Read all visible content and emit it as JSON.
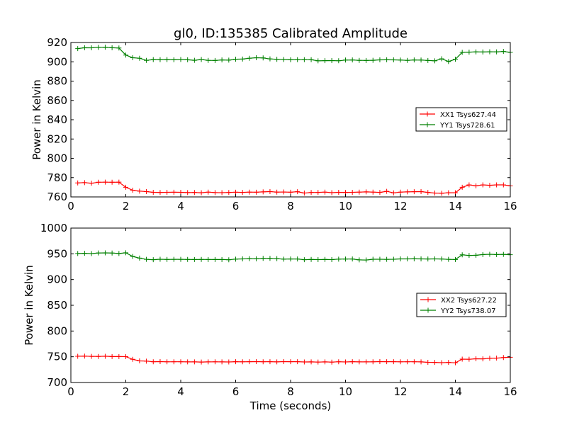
{
  "figure": {
    "title": "gl0, ID:135385 Calibrated Amplitude",
    "xlabel": "Time (seconds)"
  },
  "chart_data": [
    {
      "type": "line",
      "title": "gl0, ID:135385 Calibrated Amplitude",
      "xlabel": "",
      "ylabel": "Power in Kelvin",
      "xlim": [
        0,
        16
      ],
      "ylim": [
        760,
        920
      ],
      "xticks": [
        0,
        2,
        4,
        6,
        8,
        10,
        12,
        14,
        16
      ],
      "yticks": [
        760,
        780,
        800,
        820,
        840,
        860,
        880,
        900,
        920
      ],
      "grid": false,
      "legend_position": "right",
      "x": [
        0.25,
        0.5,
        0.75,
        1.0,
        1.25,
        1.5,
        1.75,
        2.0,
        2.25,
        2.5,
        2.75,
        3.0,
        3.25,
        3.5,
        3.75,
        4.0,
        4.25,
        4.5,
        4.75,
        5.0,
        5.25,
        5.5,
        5.75,
        6.0,
        6.25,
        6.5,
        6.75,
        7.0,
        7.25,
        7.5,
        7.75,
        8.0,
        8.25,
        8.5,
        8.75,
        9.0,
        9.25,
        9.5,
        9.75,
        10.0,
        10.25,
        10.5,
        10.75,
        11.0,
        11.25,
        11.5,
        11.75,
        12.0,
        12.25,
        12.5,
        12.75,
        13.0,
        13.25,
        13.5,
        13.75,
        14.0,
        14.25,
        14.5,
        14.75,
        15.0,
        15.25,
        15.5,
        15.75,
        16.0
      ],
      "series": [
        {
          "name": "XX1 Tsys627.44",
          "color": "#ff0000",
          "values": [
            774.5,
            774.8,
            774.2,
            775.2,
            775.3,
            775.2,
            775.3,
            770,
            767,
            766,
            765.5,
            764.8,
            764.6,
            764.8,
            764.9,
            764.8,
            764.5,
            764.6,
            764.3,
            765,
            764.5,
            764.4,
            764.6,
            764.9,
            764.7,
            765,
            764.9,
            765.2,
            765.5,
            765,
            765.1,
            764.9,
            765.4,
            764,
            764.6,
            764.7,
            765,
            764.4,
            764.8,
            764.6,
            764.8,
            765,
            765.2,
            765,
            764.7,
            765.8,
            764.2,
            765,
            765.2,
            765.4,
            765.5,
            764.7,
            764,
            763.8,
            764.3,
            764.3,
            770,
            772.5,
            771.5,
            772.5,
            772,
            772.5,
            772.5,
            771.5
          ]
        },
        {
          "name": "YY1 Tsys728.61",
          "color": "#008000",
          "values": [
            913.7,
            914.6,
            914.5,
            915,
            915.1,
            914.6,
            914.3,
            907,
            904.2,
            903.7,
            901.5,
            902.3,
            902.2,
            902.3,
            902.1,
            902.4,
            902.1,
            901.6,
            902.4,
            901.5,
            901.4,
            901.9,
            901.7,
            902.7,
            902.8,
            903.7,
            904.2,
            904,
            903,
            902.6,
            902.4,
            902.1,
            902.2,
            902.2,
            902.2,
            901,
            901.2,
            901.3,
            901.1,
            901.8,
            901.9,
            901.5,
            901.4,
            901.6,
            902,
            902.1,
            902,
            901.8,
            901.5,
            901.9,
            901.8,
            901.4,
            901,
            903.1,
            900.3,
            902.7,
            909.8,
            910,
            910.3,
            910.2,
            910.4,
            910.3,
            910.7,
            909.8
          ]
        }
      ]
    },
    {
      "type": "line",
      "title": "",
      "xlabel": "Time (seconds)",
      "ylabel": "Power in Kelvin",
      "xlim": [
        0,
        16
      ],
      "ylim": [
        700,
        1000
      ],
      "xticks": [
        0,
        2,
        4,
        6,
        8,
        10,
        12,
        14,
        16
      ],
      "yticks": [
        700,
        750,
        800,
        850,
        900,
        950,
        1000
      ],
      "grid": false,
      "legend_position": "right",
      "x": [
        0.25,
        0.5,
        0.75,
        1.0,
        1.25,
        1.5,
        1.75,
        2.0,
        2.25,
        2.5,
        2.75,
        3.0,
        3.25,
        3.5,
        3.75,
        4.0,
        4.25,
        4.5,
        4.75,
        5.0,
        5.25,
        5.5,
        5.75,
        6.0,
        6.25,
        6.5,
        6.75,
        7.0,
        7.25,
        7.5,
        7.75,
        8.0,
        8.25,
        8.5,
        8.75,
        9.0,
        9.25,
        9.5,
        9.75,
        10.0,
        10.25,
        10.5,
        10.75,
        11.0,
        11.25,
        11.5,
        11.75,
        12.0,
        12.25,
        12.5,
        12.75,
        13.0,
        13.25,
        13.5,
        13.75,
        14.0,
        14.25,
        14.5,
        14.75,
        15.0,
        15.25,
        15.5,
        15.75,
        16.0
      ],
      "series": [
        {
          "name": "XX2 Tsys627.22",
          "color": "#ff0000",
          "values": [
            751,
            751.2,
            750.8,
            750.6,
            751,
            750.4,
            750.4,
            750.2,
            745,
            742,
            741.5,
            740.3,
            740.6,
            740.2,
            740.3,
            740.3,
            740.1,
            740,
            739.8,
            740.1,
            740.2,
            740,
            739.9,
            740.4,
            740.2,
            740.5,
            740.6,
            740.3,
            740.4,
            740.1,
            740.6,
            740.4,
            740.4,
            739.9,
            740.1,
            739.7,
            740.1,
            739.6,
            740.3,
            739.9,
            740.4,
            740.1,
            740.1,
            740.2,
            740.6,
            740.4,
            740.4,
            740.2,
            740.3,
            740.3,
            740.1,
            739.2,
            739.1,
            738.5,
            739,
            738.3,
            745.4,
            745.2,
            746.1,
            746,
            747.1,
            747.4,
            748.5,
            749
          ]
        },
        {
          "name": "YY2 Tsys738.07",
          "color": "#008000",
          "values": [
            950.6,
            951,
            950.5,
            951.6,
            951.8,
            951.5,
            950.6,
            952,
            945,
            941.7,
            939.2,
            938.6,
            939.4,
            939.1,
            939.3,
            939.3,
            939.1,
            938.9,
            939.1,
            939,
            938.9,
            938.9,
            938.5,
            939.7,
            940.2,
            940.6,
            940.3,
            941.1,
            941.2,
            940.6,
            939.7,
            940,
            939.9,
            938.6,
            939.1,
            938.8,
            939.1,
            938.8,
            939.7,
            939.8,
            939.9,
            938.2,
            938,
            939.5,
            939.5,
            939.2,
            939.5,
            940.1,
            940.2,
            940.3,
            940.1,
            940,
            940.1,
            940,
            939.2,
            939,
            948,
            946.8,
            947.2,
            948.5,
            949.1,
            948.5,
            948.9,
            948.3
          ]
        }
      ]
    }
  ]
}
